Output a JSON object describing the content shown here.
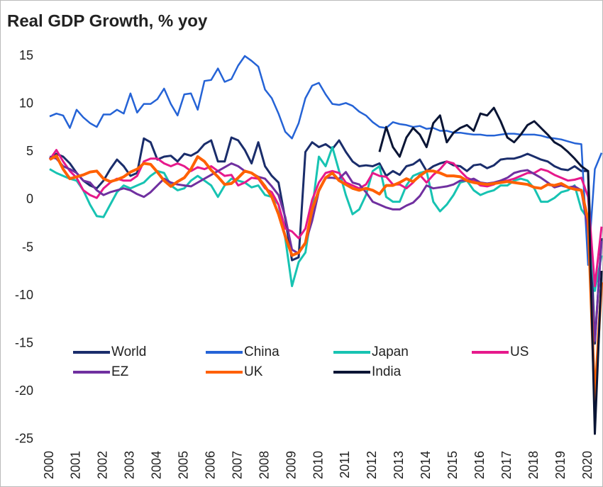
{
  "chart_data": {
    "type": "line",
    "title": "Real GDP Growth, % yoy",
    "x": [
      2000,
      2000.25,
      2000.5,
      2000.75,
      2001,
      2001.25,
      2001.5,
      2001.75,
      2002,
      2002.25,
      2002.5,
      2002.75,
      2003,
      2003.25,
      2003.5,
      2003.75,
      2004,
      2004.25,
      2004.5,
      2004.75,
      2005,
      2005.25,
      2005.5,
      2005.75,
      2006,
      2006.25,
      2006.5,
      2006.75,
      2007,
      2007.25,
      2007.5,
      2007.75,
      2008,
      2008.25,
      2008.5,
      2008.75,
      2009,
      2009.25,
      2009.5,
      2009.75,
      2010,
      2010.25,
      2010.5,
      2010.75,
      2011,
      2011.25,
      2011.5,
      2011.75,
      2012,
      2012.25,
      2012.5,
      2012.75,
      2013,
      2013.25,
      2013.5,
      2013.75,
      2014,
      2014.25,
      2014.5,
      2014.75,
      2015,
      2015.25,
      2015.5,
      2015.75,
      2016,
      2016.25,
      2016.5,
      2016.75,
      2017,
      2017.25,
      2017.5,
      2017.75,
      2018,
      2018.25,
      2018.5,
      2018.75,
      2019,
      2019.25,
      2019.5,
      2019.75,
      2020,
      2020.25,
      2020.5
    ],
    "series": [
      {
        "name": "World",
        "color": "#1a2d6b",
        "values": [
          4.3,
          4.8,
          4.5,
          3.8,
          2.8,
          2.0,
          1.5,
          1.2,
          2.0,
          3.2,
          4.2,
          3.5,
          2.5,
          2.8,
          6.4,
          6.0,
          4.2,
          4.5,
          4.6,
          4.0,
          4.8,
          4.6,
          5.0,
          5.8,
          6.2,
          4.0,
          4.0,
          6.5,
          6.2,
          5.2,
          3.8,
          6.0,
          3.5,
          2.5,
          1.8,
          -2.0,
          -6.3,
          -6.0,
          5.0,
          6.0,
          5.5,
          5.8,
          5.3,
          6.2,
          5.0,
          4.0,
          3.5,
          3.6,
          3.5,
          3.8,
          2.5,
          3.0,
          2.6,
          3.5,
          3.7,
          4.2,
          3.0,
          3.5,
          3.8,
          4.0,
          3.6,
          3.5,
          3.0,
          3.6,
          3.7,
          3.3,
          3.6,
          4.2,
          4.3,
          4.3,
          4.5,
          4.8,
          4.5,
          4.2,
          4.0,
          3.5,
          3.2,
          3.1,
          3.5,
          3.0,
          3.0,
          -15.0,
          -4.0
        ]
      },
      {
        "name": "China",
        "color": "#2563d6",
        "values": [
          8.7,
          9.0,
          8.8,
          7.5,
          9.4,
          8.6,
          8.0,
          7.6,
          8.9,
          8.9,
          9.4,
          9.0,
          11.1,
          9.1,
          10.0,
          10.0,
          10.5,
          11.6,
          10.0,
          8.8,
          11.0,
          11.1,
          9.4,
          12.4,
          12.5,
          13.7,
          12.3,
          12.6,
          14.0,
          15.0,
          14.5,
          13.9,
          11.5,
          10.6,
          9.0,
          7.1,
          6.4,
          8.0,
          10.6,
          11.9,
          12.2,
          11.0,
          10.0,
          9.9,
          10.1,
          9.8,
          9.2,
          8.8,
          8.1,
          7.6,
          7.5,
          8.1,
          7.9,
          7.8,
          7.6,
          7.7,
          7.4,
          7.5,
          7.2,
          7.2,
          7.0,
          7.0,
          6.9,
          6.8,
          6.8,
          6.7,
          6.7,
          6.8,
          6.9,
          6.9,
          6.8,
          6.8,
          6.8,
          6.7,
          6.5,
          6.4,
          6.3,
          6.1,
          5.9,
          5.8,
          -6.8,
          3.2,
          4.9
        ]
      },
      {
        "name": "Japan",
        "color": "#17c3b2",
        "values": [
          3.2,
          2.8,
          2.5,
          2.2,
          2.0,
          1.0,
          -0.5,
          -1.7,
          -1.8,
          -0.5,
          0.8,
          1.5,
          1.2,
          1.5,
          1.8,
          2.5,
          3.0,
          2.8,
          1.5,
          1.0,
          1.2,
          2.0,
          2.5,
          2.0,
          1.5,
          0.3,
          1.5,
          2.2,
          2.0,
          1.8,
          1.3,
          1.5,
          0.5,
          0.3,
          -0.5,
          -4.0,
          -9.0,
          -6.5,
          -5.5,
          -1.0,
          4.5,
          3.5,
          5.5,
          3.0,
          0.5,
          -1.5,
          -1.0,
          0.5,
          3.0,
          3.5,
          0.3,
          -0.2,
          -0.2,
          1.5,
          2.5,
          2.8,
          3.0,
          -0.2,
          -1.2,
          -0.5,
          0.5,
          1.8,
          2.0,
          1.0,
          0.5,
          0.8,
          1.0,
          1.5,
          1.5,
          2.0,
          2.2,
          2.0,
          1.2,
          -0.2,
          -0.2,
          0.2,
          0.8,
          1.0,
          1.5,
          -1.0,
          -2.0,
          -9.5,
          -5.8
        ]
      },
      {
        "name": "US",
        "color": "#e6198b",
        "values": [
          4.2,
          5.2,
          4.0,
          3.0,
          2.3,
          1.0,
          0.5,
          0.2,
          1.2,
          1.8,
          2.2,
          2.0,
          2.0,
          2.5,
          4.0,
          4.3,
          4.3,
          3.8,
          3.5,
          3.8,
          3.5,
          3.0,
          3.4,
          3.2,
          3.5,
          3.0,
          2.5,
          2.6,
          1.5,
          1.8,
          2.3,
          2.2,
          1.2,
          0.8,
          -0.5,
          -3.0,
          -3.3,
          -4.0,
          -3.0,
          0.0,
          1.8,
          2.8,
          3.0,
          2.8,
          1.8,
          1.5,
          1.2,
          1.6,
          2.8,
          2.5,
          2.4,
          1.6,
          1.6,
          1.2,
          1.8,
          2.6,
          1.8,
          2.6,
          3.2,
          4.0,
          3.8,
          3.0,
          2.3,
          2.0,
          1.5,
          1.4,
          1.6,
          2.0,
          2.0,
          2.2,
          2.5,
          2.8,
          2.8,
          3.2,
          3.0,
          2.6,
          2.3,
          2.0,
          2.1,
          2.3,
          0.3,
          -9.0,
          -2.8
        ]
      },
      {
        "name": "EZ",
        "color": "#7030a0",
        "values": [
          4.5,
          4.3,
          3.5,
          3.2,
          2.8,
          2.0,
          1.8,
          1.0,
          0.5,
          0.8,
          1.0,
          1.2,
          1.0,
          0.6,
          0.3,
          0.8,
          1.5,
          2.2,
          1.8,
          1.6,
          1.5,
          1.4,
          1.8,
          2.2,
          2.6,
          3.0,
          3.4,
          3.8,
          3.5,
          3.0,
          2.8,
          2.4,
          2.2,
          1.4,
          0.5,
          -1.8,
          -5.2,
          -5.6,
          -4.5,
          -2.2,
          0.9,
          2.3,
          2.3,
          2.2,
          2.9,
          1.8,
          1.6,
          0.8,
          -0.2,
          -0.5,
          -0.8,
          -1.0,
          -1.0,
          -0.6,
          -0.3,
          0.4,
          1.5,
          1.2,
          1.3,
          1.4,
          1.6,
          2.0,
          2.0,
          2.2,
          1.8,
          1.7,
          1.8,
          2.0,
          2.3,
          2.8,
          3.0,
          3.1,
          2.7,
          2.3,
          1.8,
          1.3,
          1.5,
          1.3,
          1.4,
          1.0,
          -3.3,
          -14.7,
          -4.3
        ]
      },
      {
        "name": "UK",
        "color": "#ff6000",
        "values": [
          4.2,
          4.6,
          3.2,
          2.2,
          2.4,
          2.6,
          2.9,
          3.0,
          2.2,
          1.9,
          2.1,
          2.4,
          2.9,
          3.2,
          3.8,
          3.7,
          2.9,
          2.0,
          1.4,
          1.9,
          2.3,
          3.2,
          4.5,
          4.0,
          3.1,
          2.4,
          1.6,
          1.7,
          2.3,
          3.0,
          2.8,
          2.3,
          1.4,
          0.3,
          -1.5,
          -3.8,
          -5.8,
          -5.5,
          -4.5,
          -1.0,
          1.0,
          2.3,
          2.8,
          2.0,
          1.6,
          1.2,
          1.0,
          1.2,
          1.0,
          0.6,
          1.5,
          1.5,
          1.8,
          2.2,
          1.9,
          2.5,
          3.0,
          3.0,
          2.8,
          2.5,
          2.5,
          2.4,
          2.0,
          1.8,
          1.7,
          1.6,
          1.7,
          1.8,
          1.9,
          1.8,
          1.7,
          1.6,
          1.3,
          1.2,
          1.6,
          1.5,
          1.7,
          1.3,
          1.1,
          1.0,
          -2.1,
          -21.0,
          -8.6
        ]
      },
      {
        "name": "India",
        "color": "#0a1535",
        "values": [
          null,
          null,
          null,
          null,
          null,
          null,
          null,
          null,
          null,
          null,
          null,
          null,
          null,
          null,
          null,
          null,
          null,
          null,
          null,
          null,
          null,
          null,
          null,
          null,
          null,
          null,
          null,
          null,
          null,
          null,
          null,
          null,
          null,
          null,
          null,
          null,
          null,
          null,
          null,
          null,
          null,
          null,
          null,
          null,
          null,
          null,
          null,
          null,
          null,
          5.0,
          7.6,
          5.5,
          4.5,
          6.5,
          7.5,
          6.8,
          5.5,
          8.0,
          8.8,
          6.0,
          7.0,
          7.5,
          7.8,
          7.2,
          9.0,
          8.8,
          9.6,
          8.2,
          6.5,
          6.0,
          6.8,
          7.8,
          8.2,
          7.5,
          6.8,
          6.0,
          5.6,
          5.0,
          4.3,
          3.5,
          3.0,
          -24.4,
          -7.4
        ]
      }
    ],
    "xlim": [
      2000,
      2020.5
    ],
    "xticks": [
      2000,
      2001,
      2002,
      2003,
      2004,
      2005,
      2006,
      2007,
      2008,
      2009,
      2010,
      2011,
      2012,
      2013,
      2014,
      2015,
      2016,
      2017,
      2018,
      2019,
      2020
    ],
    "ylim": [
      -26,
      16
    ],
    "yticks": [
      -25,
      -20,
      -15,
      -10,
      -5,
      0,
      5,
      10,
      15
    ],
    "grid": false,
    "legend": "lower left"
  }
}
